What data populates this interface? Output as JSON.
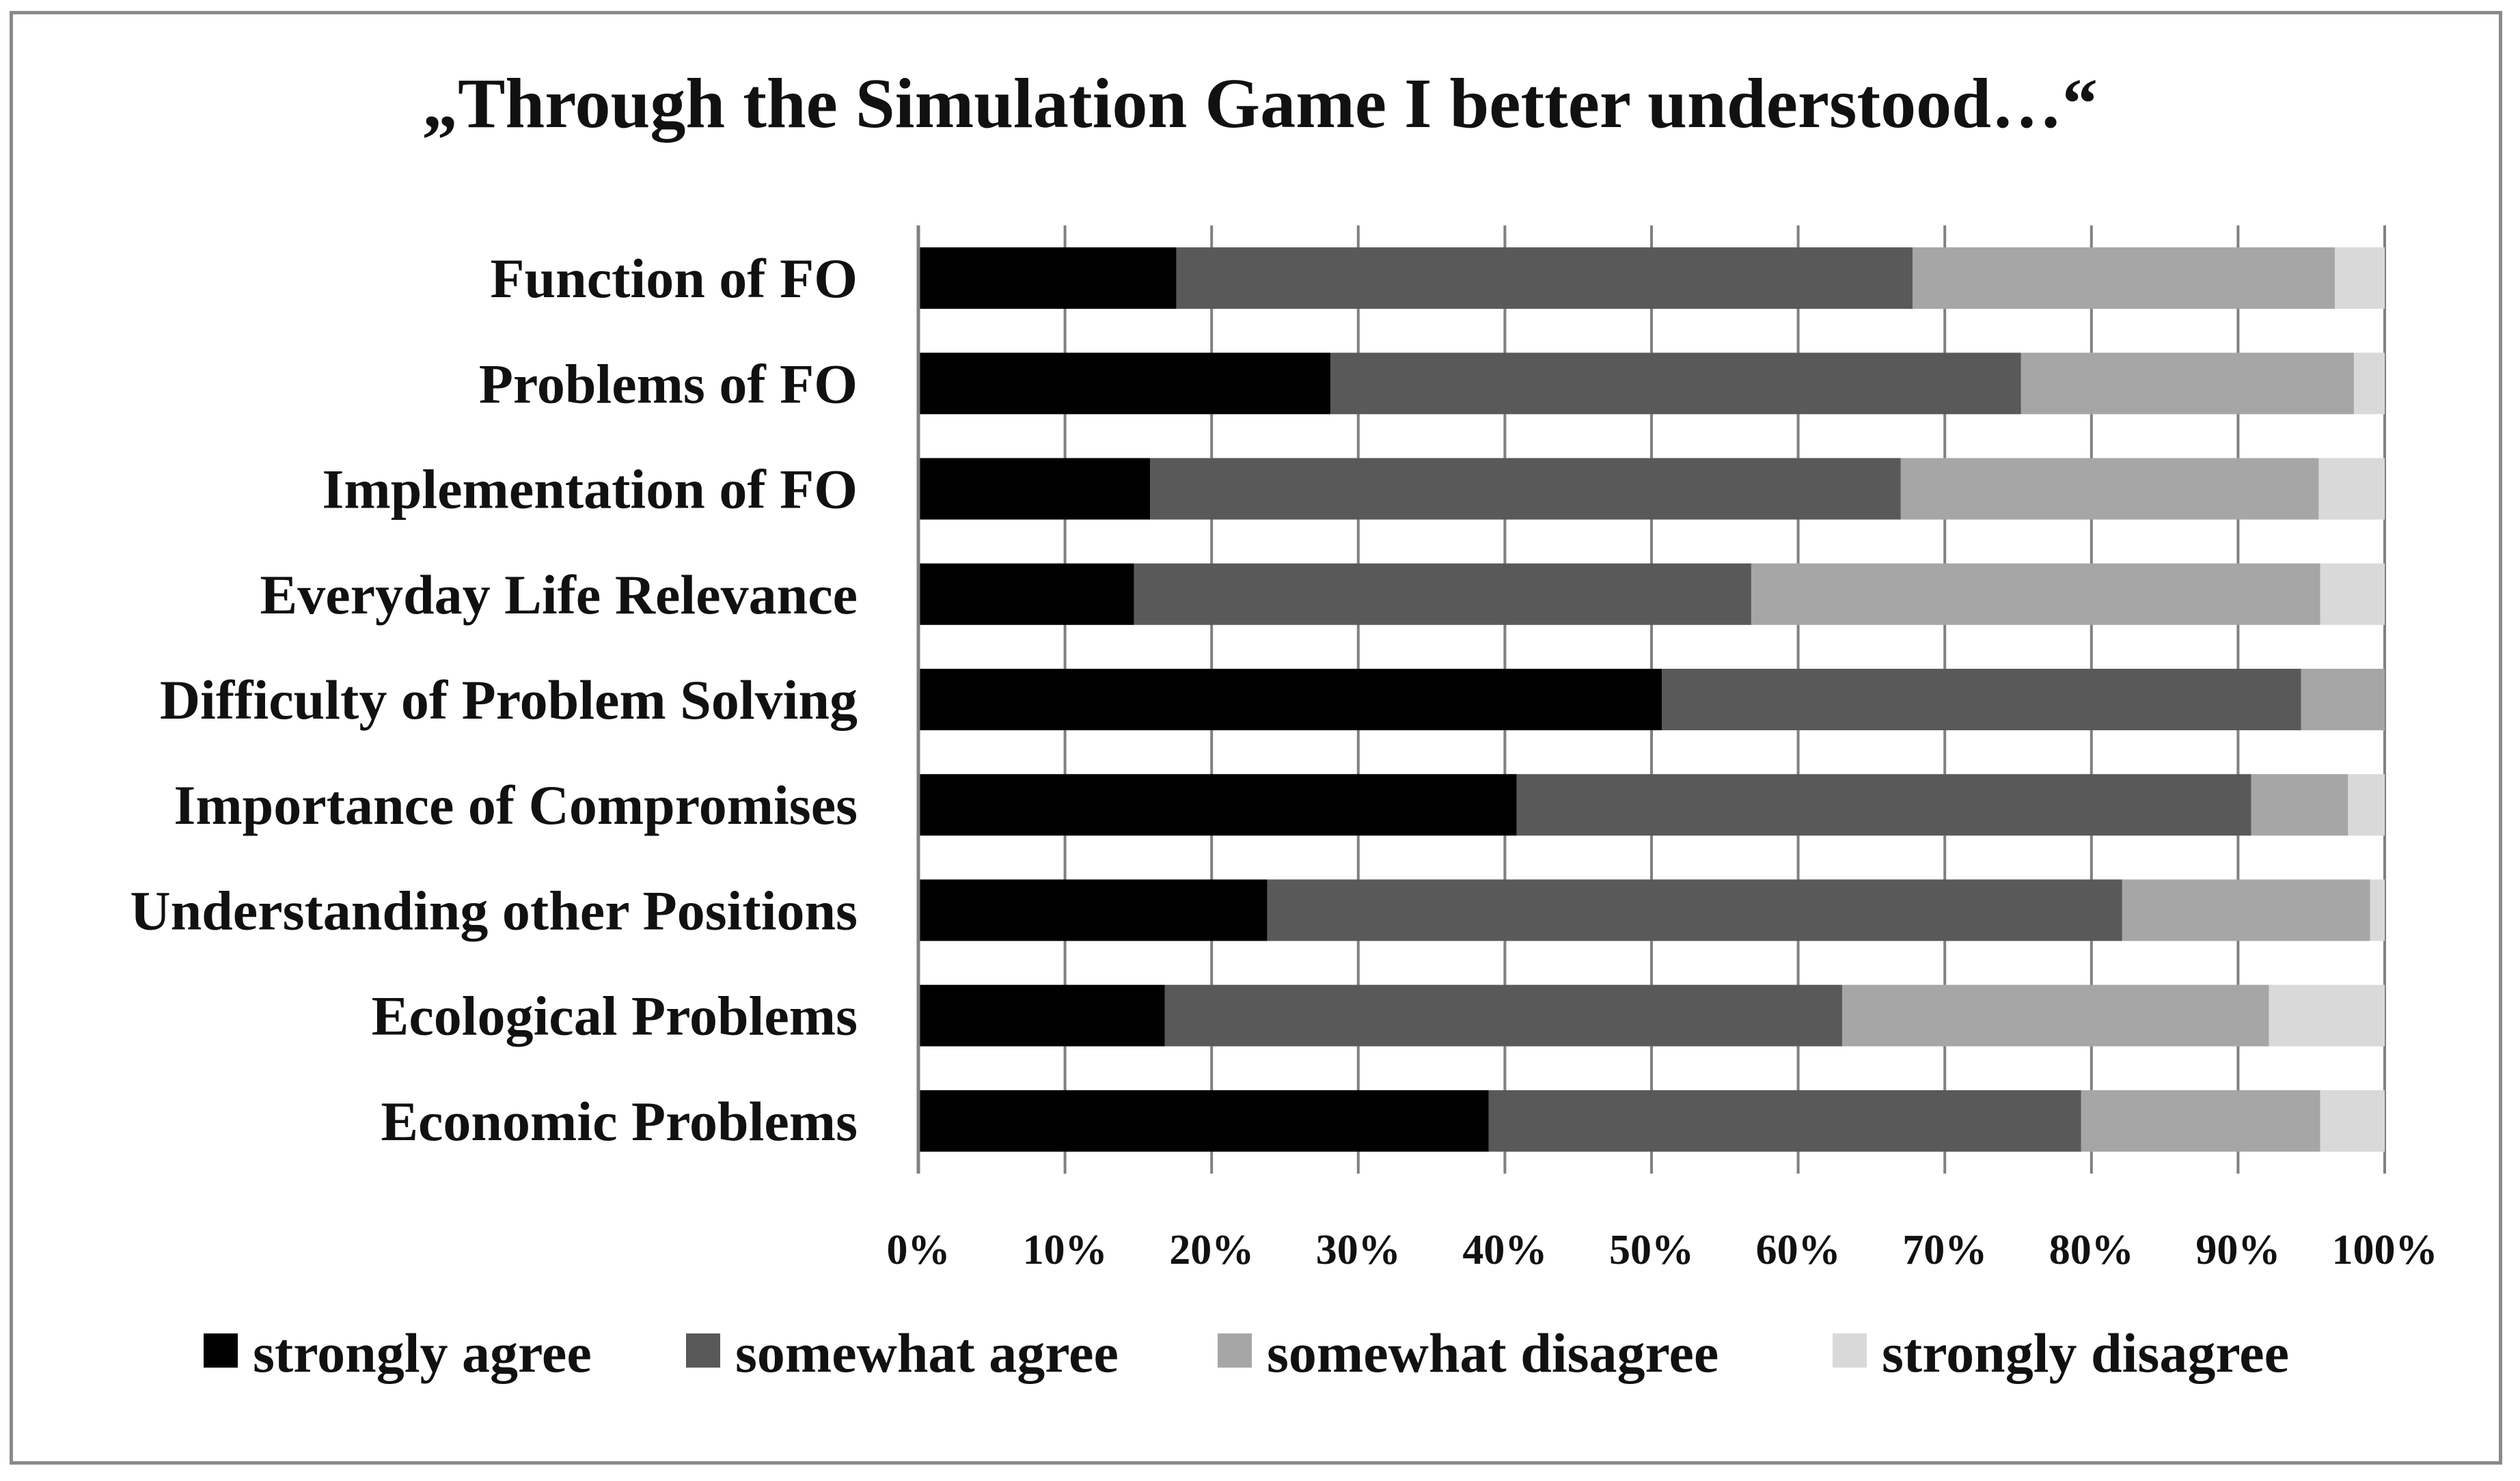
{
  "chart_data": {
    "type": "bar",
    "orientation": "horizontal",
    "stacked": true,
    "title": "„Through the Simulation Game I better understood…“",
    "xlabel": "",
    "ylabel": "",
    "xlim": [
      0,
      100
    ],
    "x_ticks": [
      "0%",
      "10%",
      "20%",
      "30%",
      "40%",
      "50%",
      "60%",
      "70%",
      "80%",
      "90%",
      "100%"
    ],
    "grid": true,
    "legend_position": "bottom",
    "categories": [
      "Function of FO",
      "Problems of FO",
      "Implementation of FO",
      "Everyday Life Relevance",
      "Difficulty of Problem Solving",
      "Importance of Compromises",
      "Understanding other Positions",
      "Ecological Problems",
      "Economic Problems"
    ],
    "series": [
      {
        "name": "strongly agree",
        "color": "#000000",
        "values": [
          17.6,
          28.1,
          15.8,
          14.7,
          50.7,
          40.8,
          23.8,
          16.8,
          38.9
        ]
      },
      {
        "name": "somewhat agree",
        "color": "#595959",
        "values": [
          50.2,
          47.1,
          51.2,
          42.1,
          43.6,
          50.1,
          58.3,
          46.2,
          40.4
        ]
      },
      {
        "name": "somewhat disagree",
        "color": "#a6a6a6",
        "values": [
          28.8,
          22.7,
          28.5,
          38.8,
          5.7,
          6.6,
          16.9,
          29.1,
          16.3
        ]
      },
      {
        "name": "strongly disagree",
        "color": "#d9d9d9",
        "values": [
          3.4,
          2.1,
          4.5,
          4.4,
          0.0,
          2.5,
          1.0,
          7.9,
          4.4
        ]
      }
    ]
  }
}
